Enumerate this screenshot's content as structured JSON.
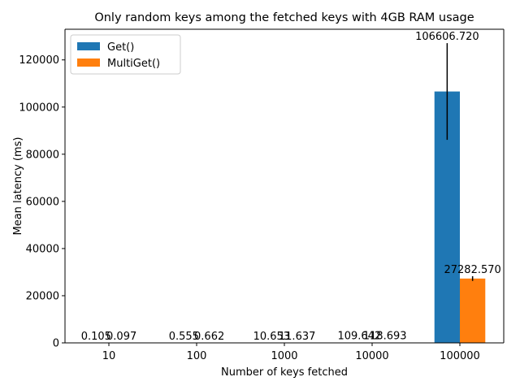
{
  "chart_data": {
    "type": "bar",
    "title": "Only random keys among the fetched keys with 4GB RAM usage",
    "xlabel": "Number of keys fetched",
    "ylabel": "Mean latency (ms)",
    "categories": [
      "10",
      "100",
      "1000",
      "10000",
      "100000"
    ],
    "ylim": [
      0,
      133000
    ],
    "yticks": [
      0,
      20000,
      40000,
      60000,
      80000,
      100000,
      120000
    ],
    "grid": false,
    "legend_position": "top-left",
    "series": [
      {
        "name": "Get()",
        "color": "#1f77b4",
        "values": [
          0.105,
          0.555,
          10.653,
          109.642,
          106606.72
        ],
        "labels": [
          "0.105",
          "0.555",
          "10.653",
          "109.642",
          "106606.720"
        ],
        "error": [
          0,
          0,
          0,
          0,
          20500
        ]
      },
      {
        "name": "MultiGet()",
        "color": "#ff7f0e",
        "values": [
          0.097,
          0.662,
          11.637,
          118.693,
          27282.57
        ],
        "labels": [
          "0.097",
          "0.662",
          "11.637",
          "118.693",
          "27282.570"
        ],
        "error": [
          0,
          0,
          0,
          0,
          1000
        ]
      }
    ]
  }
}
